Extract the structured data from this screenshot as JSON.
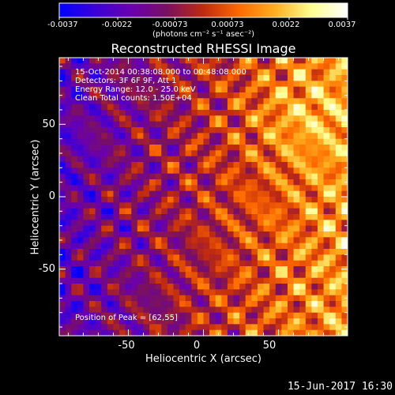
{
  "colorbar": {
    "tick_labels": [
      "-0.0037",
      "-0.0022",
      "-0.00073",
      "0.00073",
      "0.0022",
      "0.0037"
    ],
    "unit_label": "(photons cm⁻² s⁻¹ asec⁻²)",
    "range": [
      -0.0037,
      0.0037
    ],
    "colormap": [
      "#0000ff",
      "#3b00d8",
      "#6a00b0",
      "#7a1060",
      "#c02a10",
      "#ff6a00",
      "#ffb020",
      "#ffff90",
      "#ffffff"
    ]
  },
  "title": "Reconstructed RHESSI Image",
  "info": {
    "line1": "15-Oct-2014 00:38:08.000 to 00:48:08.000",
    "line2": "Detectors: 3F 6F 9F, Att 1",
    "line3": "Energy Range: 12.0 - 25.0 keV",
    "line4": "Clean     Total counts: 1.50E+04",
    "peak": "Position of Peak = [62,55]"
  },
  "footer": {
    "timestamp": "15-Jun-2017 16:30"
  },
  "chart_data": {
    "type": "heatmap",
    "title": "Reconstructed RHESSI Image",
    "xlabel": "Heliocentric X (arcsec)",
    "ylabel": "Heliocentric Y (arcsec)",
    "xlim": [
      -96,
      96
    ],
    "ylim": [
      -96,
      96
    ],
    "x_ticks": [
      -50,
      0,
      50
    ],
    "y_ticks": [
      50,
      0,
      -50
    ],
    "x_tick_labels": [
      "-50",
      "0",
      "50"
    ],
    "y_tick_labels": [
      "50",
      "0",
      "-50"
    ],
    "value_range": [
      -0.0037,
      0.0037
    ],
    "peak_position": [
      62,
      55
    ],
    "pixel_size_arcsec": 4
  }
}
